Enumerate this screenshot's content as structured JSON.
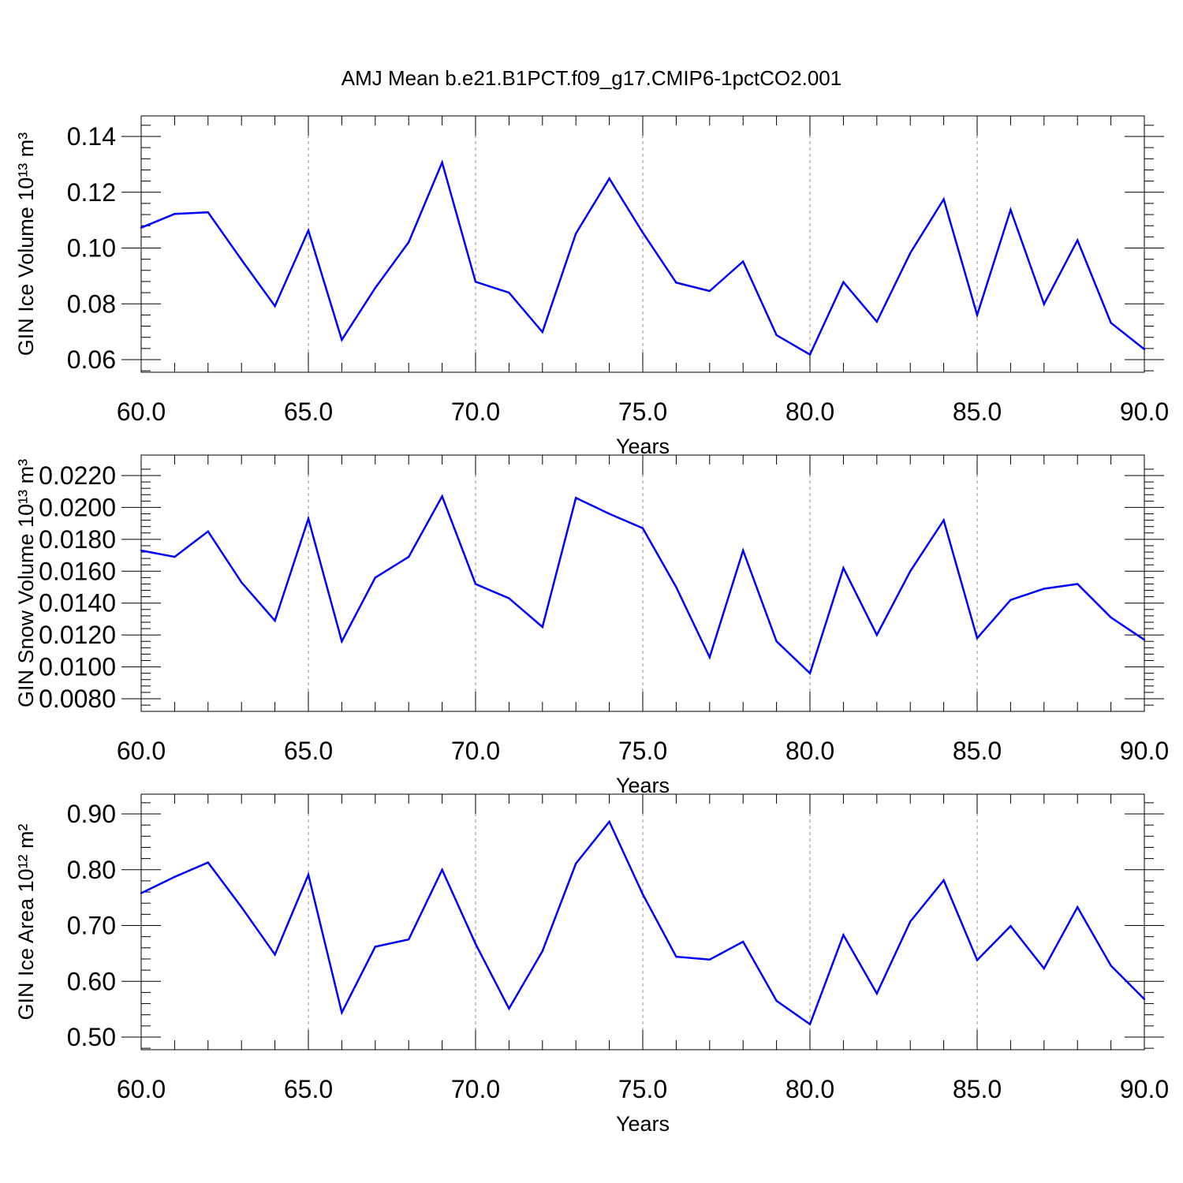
{
  "title": "AMJ Mean b.e21.B1PCT.f09_g17.CMIP6-1pctCO2.001",
  "chart_data": [
    {
      "type": "line",
      "title": "AMJ Mean b.e21.B1PCT.f09_g17.CMIP6-1pctCO2.001",
      "xlabel": "Years",
      "ylabel": "GIN Ice Volume 10¹³ m³",
      "xlim": [
        60,
        90
      ],
      "ylim": [
        0.06,
        0.14
      ],
      "xticks": [
        "60.0",
        "65.0",
        "70.0",
        "75.0",
        "80.0",
        "85.0",
        "90.0"
      ],
      "yticks": [
        "0.06",
        "0.08",
        "0.10",
        "0.12",
        "0.14"
      ],
      "color": "#0000ff",
      "x": [
        60,
        61,
        62,
        63,
        64,
        65,
        66,
        67,
        68,
        69,
        70,
        71,
        72,
        73,
        74,
        75,
        76,
        77,
        78,
        79,
        80,
        81,
        82,
        83,
        84,
        85,
        86,
        87,
        88,
        89,
        90
      ],
      "values": [
        0.1073,
        0.1122,
        0.1128,
        0.0958,
        0.0792,
        0.1063,
        0.0671,
        0.0857,
        0.1021,
        0.1307,
        0.0879,
        0.084,
        0.0699,
        0.1052,
        0.1249,
        0.1055,
        0.0876,
        0.0846,
        0.0952,
        0.0688,
        0.0618,
        0.0878,
        0.0736,
        0.0982,
        0.1175,
        0.076,
        0.1137,
        0.0799,
        0.1028,
        0.0732,
        0.0637
      ]
    },
    {
      "type": "line",
      "xlabel": "Years",
      "ylabel": "GIN Snow Volume 10¹³ m³",
      "xlim": [
        60,
        90
      ],
      "ylim": [
        0.008,
        0.022
      ],
      "xticks": [
        "60.0",
        "65.0",
        "70.0",
        "75.0",
        "80.0",
        "85.0",
        "90.0"
      ],
      "yticks": [
        "0.0080",
        "0.0100",
        "0.0120",
        "0.0140",
        "0.0160",
        "0.0180",
        "0.0200",
        "0.0220"
      ],
      "color": "#0000ff",
      "x": [
        60,
        61,
        62,
        63,
        64,
        65,
        66,
        67,
        68,
        69,
        70,
        71,
        72,
        73,
        74,
        75,
        76,
        77,
        78,
        79,
        80,
        81,
        82,
        83,
        84,
        85,
        86,
        87,
        88,
        89,
        90
      ],
      "values": [
        0.0173,
        0.0169,
        0.0185,
        0.0153,
        0.0129,
        0.0193,
        0.0116,
        0.0156,
        0.0169,
        0.0207,
        0.0152,
        0.0143,
        0.0125,
        0.0206,
        0.0196,
        0.0187,
        0.015,
        0.0106,
        0.0173,
        0.0116,
        0.0096,
        0.0162,
        0.012,
        0.016,
        0.0192,
        0.0118,
        0.0142,
        0.0149,
        0.0152,
        0.0131,
        0.0117
      ]
    },
    {
      "type": "line",
      "xlabel": "Years",
      "ylabel": "GIN Ice Area 10¹² m²",
      "xlim": [
        60,
        90
      ],
      "ylim": [
        0.5,
        0.9
      ],
      "xticks": [
        "60.0",
        "65.0",
        "70.0",
        "75.0",
        "80.0",
        "85.0",
        "90.0"
      ],
      "yticks": [
        "0.50",
        "0.60",
        "0.70",
        "0.80",
        "0.90"
      ],
      "color": "#0000ff",
      "x": [
        60,
        61,
        62,
        63,
        64,
        65,
        66,
        67,
        68,
        69,
        70,
        71,
        72,
        73,
        74,
        75,
        76,
        77,
        78,
        79,
        80,
        81,
        82,
        83,
        84,
        85,
        86,
        87,
        88,
        89,
        90
      ],
      "values": [
        0.758,
        0.787,
        0.813,
        0.733,
        0.648,
        0.791,
        0.544,
        0.662,
        0.675,
        0.8,
        0.667,
        0.551,
        0.654,
        0.811,
        0.886,
        0.756,
        0.644,
        0.639,
        0.671,
        0.565,
        0.523,
        0.683,
        0.578,
        0.707,
        0.781,
        0.638,
        0.699,
        0.623,
        0.733,
        0.628,
        0.568
      ]
    }
  ]
}
